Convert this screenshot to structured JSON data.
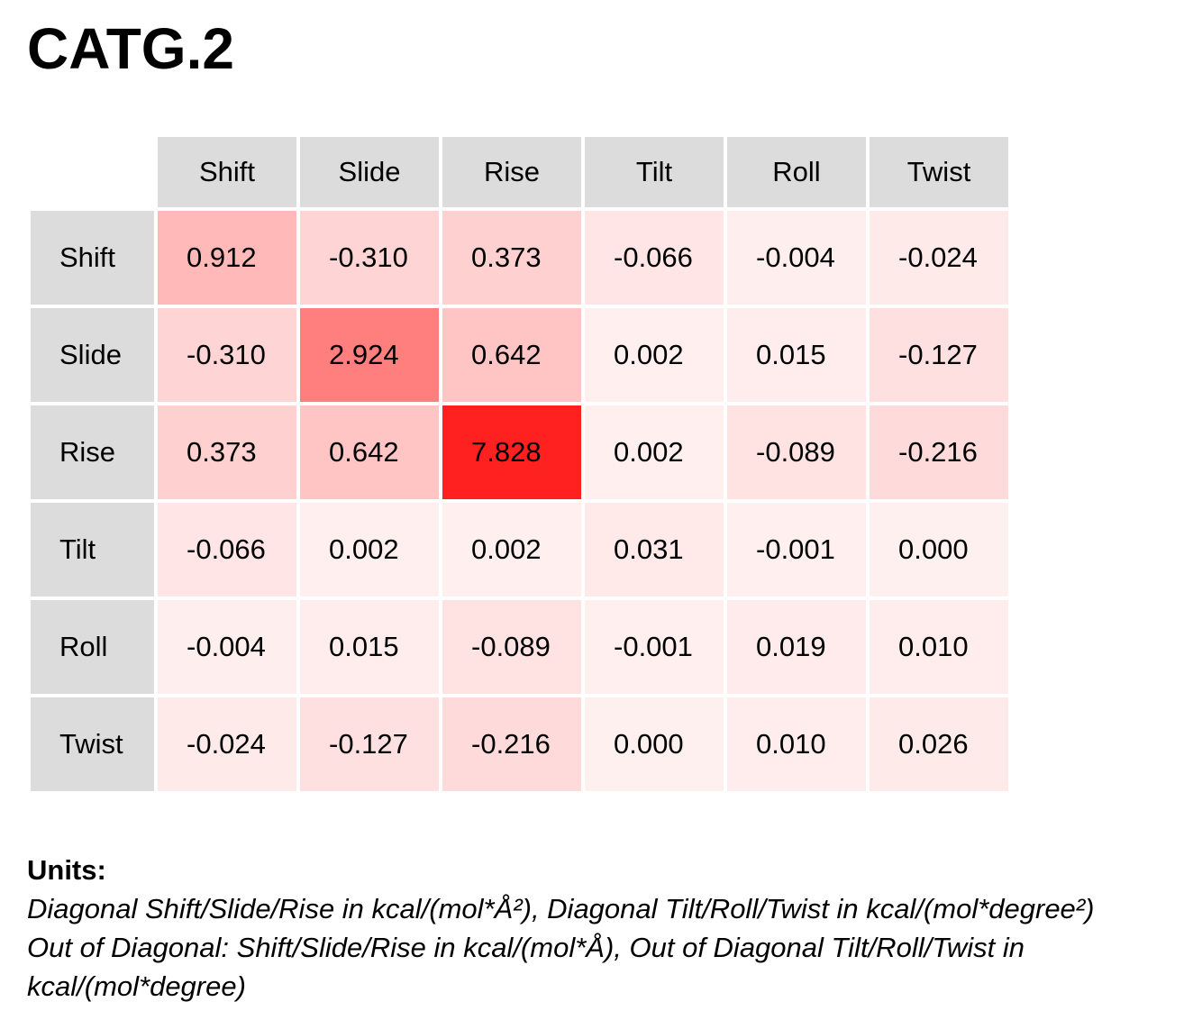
{
  "title": "CATG.2",
  "chart_data": {
    "type": "heatmap",
    "title": "CATG.2",
    "x_labels": [
      "Shift",
      "Slide",
      "Rise",
      "Tilt",
      "Roll",
      "Twist"
    ],
    "y_labels": [
      "Shift",
      "Slide",
      "Rise",
      "Tilt",
      "Roll",
      "Twist"
    ],
    "values": [
      [
        "0.912",
        "-0.310",
        "0.373",
        "-0.066",
        "-0.004",
        "-0.024"
      ],
      [
        "-0.310",
        "2.924",
        "0.642",
        "0.002",
        "0.015",
        "-0.127"
      ],
      [
        "0.373",
        "0.642",
        "7.828",
        "0.002",
        "-0.089",
        "-0.216"
      ],
      [
        "-0.066",
        "0.002",
        "0.002",
        "0.031",
        "-0.001",
        "0.000"
      ],
      [
        "-0.004",
        "0.015",
        "-0.089",
        "-0.001",
        "0.019",
        "0.010"
      ],
      [
        "-0.024",
        "-0.127",
        "-0.216",
        "0.000",
        "0.010",
        "0.026"
      ]
    ],
    "colormap": {
      "low": "#fff0f0",
      "high": "#ff2020"
    }
  },
  "units": {
    "label": "Units:",
    "lines": [
      "Diagonal Shift/Slide/Rise in kcal/(mol*Å²), Diagonal Tilt/Roll/Twist in kcal/(mol*degree²)",
      "Out of Diagonal: Shift/Slide/Rise in kcal/(mol*Å), Out of Diagonal Tilt/Roll/Twist in",
      "kcal/(mol*degree)"
    ]
  }
}
